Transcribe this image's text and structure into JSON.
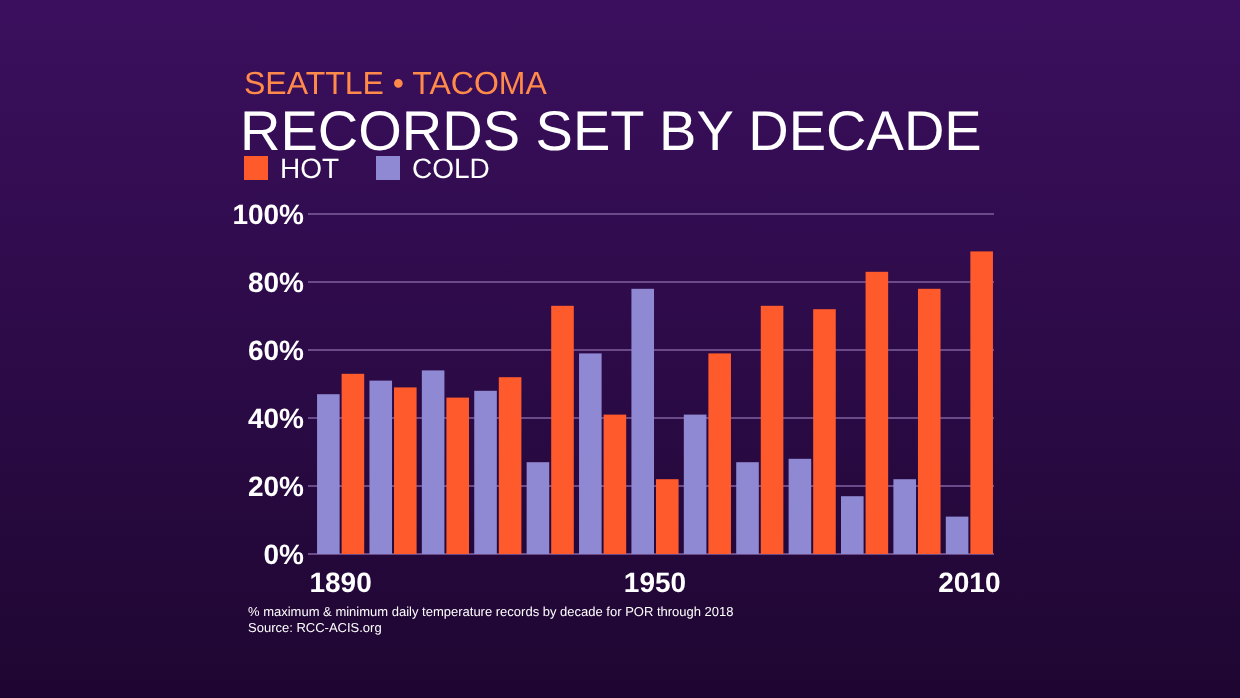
{
  "chart_data": {
    "type": "bar",
    "subtitle": "SEATTLE • TACOMA",
    "title": "RECORDS SET BY DECADE",
    "categories": [
      "1890",
      null,
      null,
      null,
      null,
      null,
      "1950",
      null,
      null,
      null,
      null,
      null,
      "2010"
    ],
    "series": [
      {
        "name": "COLD",
        "color": "#8f88d2",
        "values": [
          47,
          51,
          54,
          48,
          27,
          59,
          78,
          41,
          27,
          28,
          17,
          22,
          11
        ]
      },
      {
        "name": "HOT",
        "color": "#ff5a2c",
        "values": [
          53,
          49,
          46,
          52,
          73,
          41,
          22,
          59,
          73,
          72,
          83,
          78,
          89
        ]
      }
    ],
    "ylim": [
      0,
      100
    ],
    "yticks": [
      {
        "value": 0,
        "label": "0%"
      },
      {
        "value": 20,
        "label": "20%"
      },
      {
        "value": 40,
        "label": "40%"
      },
      {
        "value": 60,
        "label": "60%"
      },
      {
        "value": 80,
        "label": "80%"
      },
      {
        "value": 100,
        "label": "100%"
      }
    ],
    "grid": "y",
    "legend": "top left",
    "annotations": [
      "% maximum & minimum daily temperature records by decade for POR through 2018",
      "Source: RCC-ACIS.org"
    ]
  }
}
